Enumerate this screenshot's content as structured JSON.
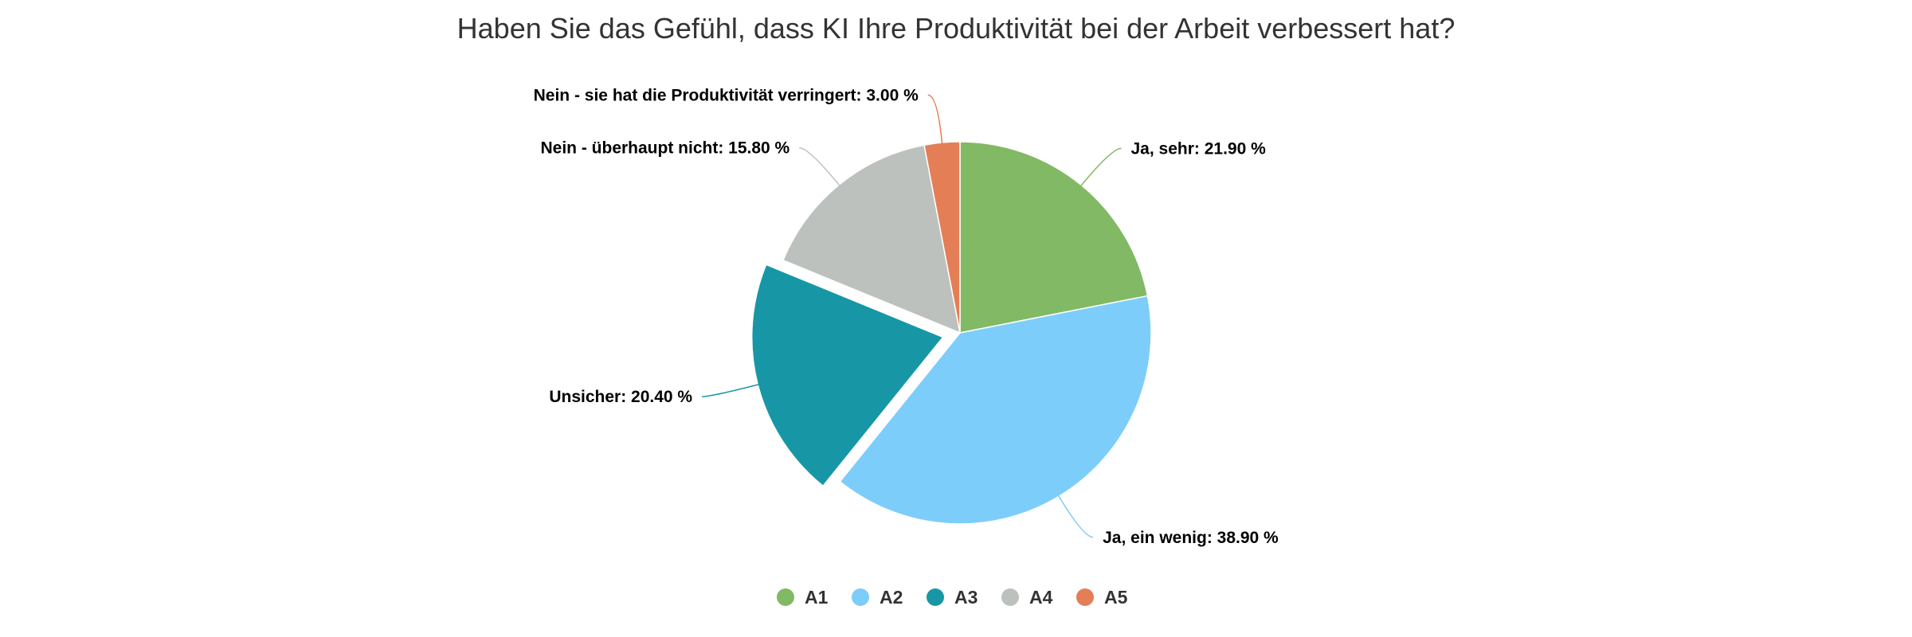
{
  "chart_data": {
    "type": "pie",
    "title": "Haben Sie das Gefühl, dass KI Ihre Produktivität bei der Arbeit verbessert hat?",
    "slices": [
      {
        "label": "Ja, sehr",
        "value": 21.9,
        "legend": "A1",
        "color": "#82b964"
      },
      {
        "label": "Ja, ein wenig",
        "value": 38.9,
        "legend": "A2",
        "color": "#7dcdfa"
      },
      {
        "label": "Unsicher",
        "value": 20.4,
        "legend": "A3",
        "color": "#1797a6",
        "exploded": true
      },
      {
        "label": "Nein - überhaupt nicht",
        "value": 15.8,
        "legend": "A4",
        "color": "#bdc1bd"
      },
      {
        "label": "Nein - sie hat die Produktivität verringert",
        "value": 3.0,
        "legend": "A5",
        "color": "#e47e56"
      }
    ],
    "value_suffix": " %",
    "start_angle_deg": 0,
    "legend_position": "bottom"
  }
}
